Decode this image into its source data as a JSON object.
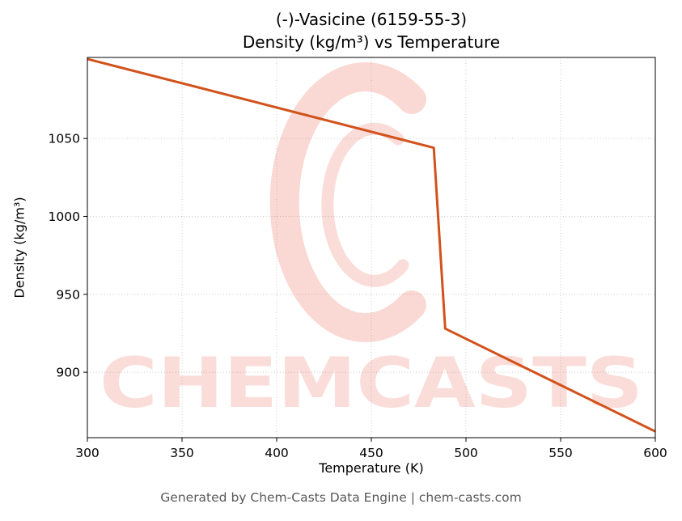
{
  "title": {
    "line1": "(-)-Vasicine (6159-55-3)",
    "line2": "Density (kg/m³) vs Temperature"
  },
  "axes": {
    "xlabel": "Temperature (K)",
    "ylabel": "Density (kg/m³)"
  },
  "footer": {
    "text": "Generated by Chem-Casts Data Engine | chem-casts.com"
  },
  "watermark": {
    "text": "CHEMCASTS",
    "color": "#e8503a"
  },
  "chart_data": {
    "type": "line",
    "title": "(-)-Vasicine (6159-55-3) — Density (kg/m³) vs Temperature",
    "xlabel": "Temperature (K)",
    "ylabel": "Density (kg/m³)",
    "series": [
      {
        "name": "Density",
        "x": [
          300,
          483,
          489,
          600
        ],
        "y": [
          1101,
          1044,
          928,
          862
        ]
      }
    ],
    "xlim": [
      300,
      600
    ],
    "ylim": [
      858,
      1102
    ],
    "xticks": [
      300,
      350,
      400,
      450,
      500,
      550,
      600
    ],
    "yticks": [
      900,
      950,
      1000,
      1050
    ],
    "grid": true,
    "legend": false,
    "line_color": "#d2521c",
    "line_width": 3
  }
}
